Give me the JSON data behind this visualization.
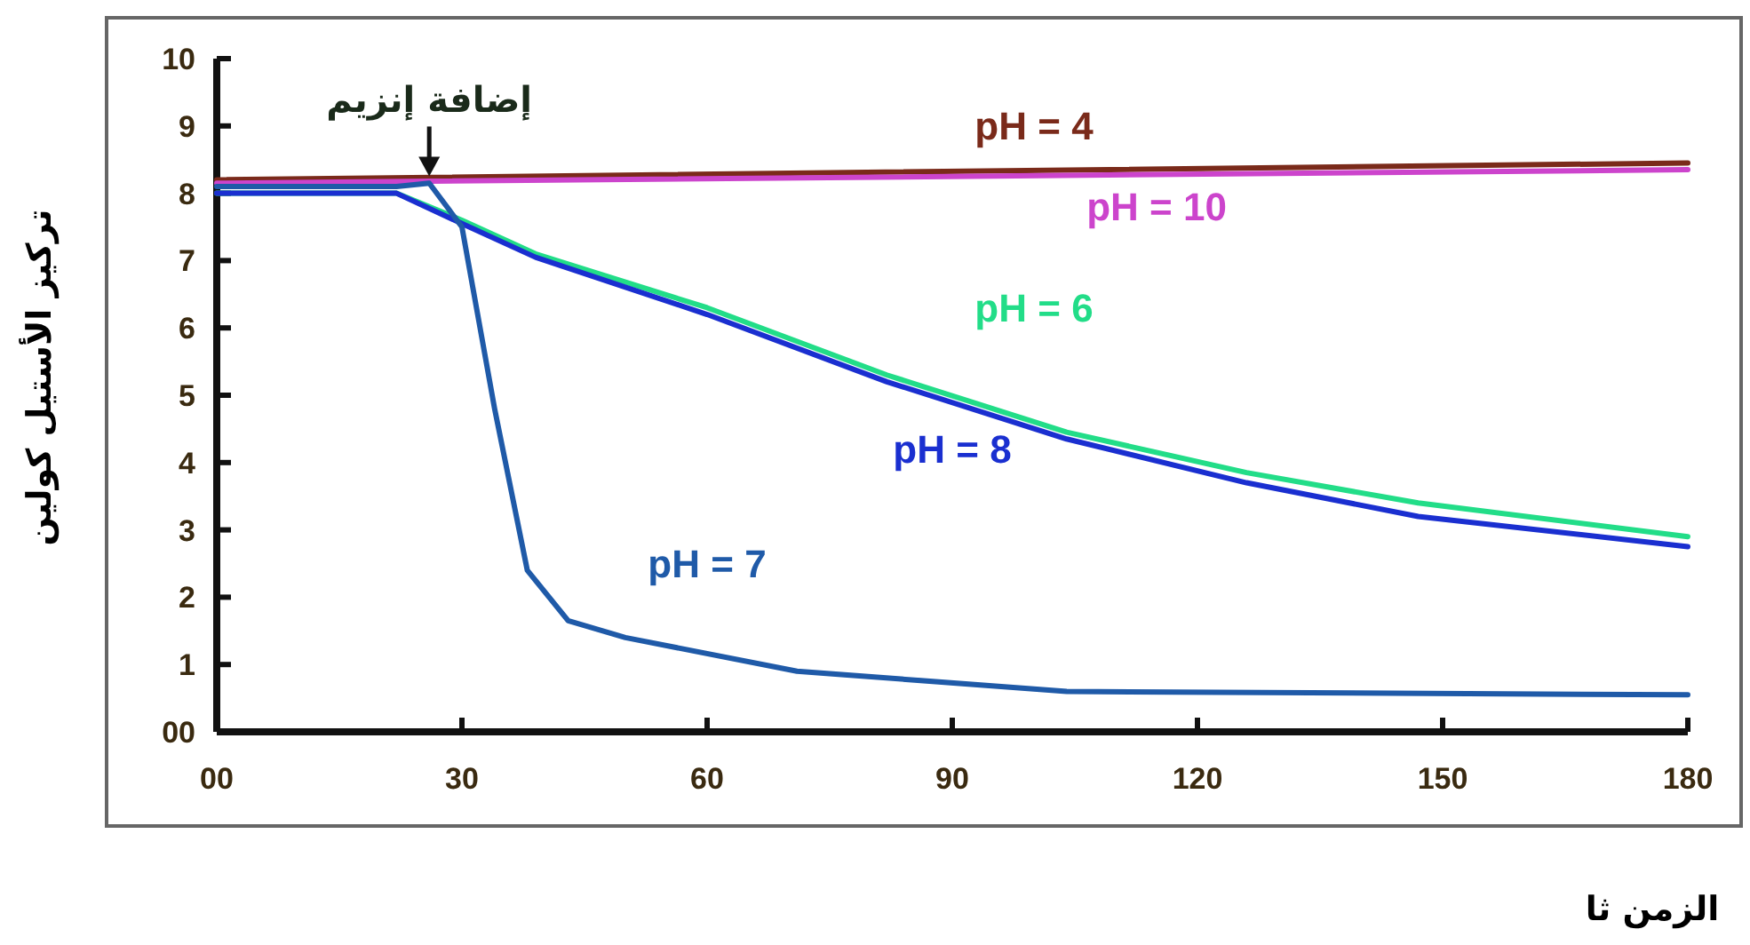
{
  "chart_data": {
    "type": "line",
    "xlabel": "الزمن ثا",
    "ylabel": "تركيز الأستيل كولين",
    "xlim": [
      0,
      180
    ],
    "xticks": [
      {
        "value": 0,
        "label": "00"
      },
      30,
      60,
      90,
      120,
      150,
      180
    ],
    "ylim": [
      0,
      10
    ],
    "yticks": [
      {
        "value": 0,
        "label": "00"
      },
      1,
      2,
      3,
      4,
      5,
      6,
      7,
      8,
      9,
      10
    ],
    "grid": false,
    "marker": "none",
    "line_style": "solid",
    "annotations": [
      {
        "text": "إضافة إنزيم",
        "x": 26,
        "y": 8.2
      }
    ],
    "series": [
      {
        "name": "pH = 4",
        "color": "#7a2a1a",
        "x": [
          0,
          180
        ],
        "values": [
          8.2,
          8.45
        ]
      },
      {
        "name": "pH = 10",
        "color": "#cc44cc",
        "x": [
          0,
          180
        ],
        "values": [
          8.15,
          8.35
        ]
      },
      {
        "name": "pH = 6",
        "color": "#22dd88",
        "x": [
          0,
          22,
          30,
          39,
          60,
          82,
          104,
          126,
          147,
          180
        ],
        "values": [
          8.0,
          8.0,
          7.6,
          7.1,
          6.3,
          5.3,
          4.45,
          3.85,
          3.4,
          2.9
        ]
      },
      {
        "name": "pH = 8",
        "color": "#1a2fd0",
        "x": [
          0,
          22,
          30,
          39,
          60,
          82,
          104,
          126,
          147,
          180
        ],
        "values": [
          8.0,
          8.0,
          7.55,
          7.05,
          6.2,
          5.2,
          4.35,
          3.7,
          3.2,
          2.75
        ]
      },
      {
        "name": "pH = 7",
        "color": "#1f5aa8",
        "x": [
          0,
          22,
          26,
          30,
          34,
          38,
          43,
          50,
          71,
          104,
          180
        ],
        "values": [
          8.1,
          8.1,
          8.15,
          7.5,
          4.8,
          2.4,
          1.65,
          1.4,
          0.9,
          0.6,
          0.55
        ]
      }
    ]
  }
}
